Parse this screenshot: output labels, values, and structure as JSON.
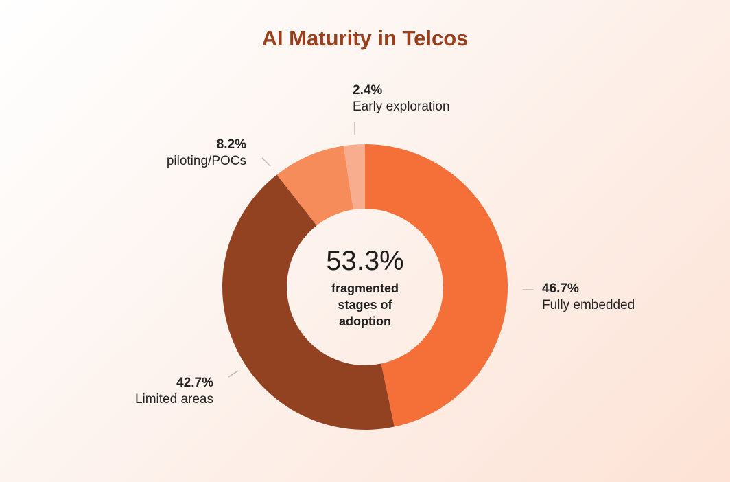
{
  "chart_data": {
    "type": "pie",
    "title": "AI Maturity in Telcos",
    "categories": [
      "Fully embedded",
      "Limited areas",
      "piloting/POCs",
      "Early exploration"
    ],
    "values": [
      46.7,
      42.7,
      8.2,
      2.4
    ],
    "value_labels": [
      "46.7%",
      "42.7%",
      "8.2%",
      "2.4%"
    ],
    "colors": [
      "#f47038",
      "#924221",
      "#f58c5a",
      "#f7ad8e"
    ],
    "center_text": "53.3%",
    "center_caption": "fragmented stages of adoption"
  }
}
